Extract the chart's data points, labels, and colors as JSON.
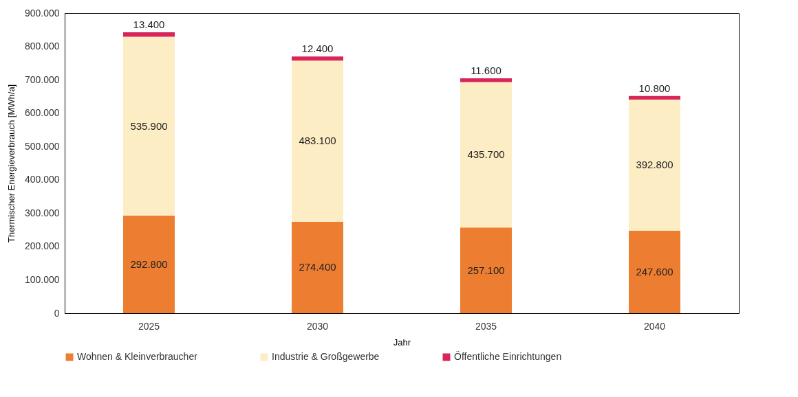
{
  "chart_data": {
    "type": "bar",
    "stacked": true,
    "xlabel": "Jahr",
    "ylabel": "Thermischer Energieverbrauch [MWh/a]",
    "categories": [
      "2025",
      "2030",
      "2035",
      "2040"
    ],
    "series": [
      {
        "name": "Wohnen & Kleinverbraucher",
        "color": "#ed7d31",
        "values": [
          292800,
          274400,
          257100,
          247600
        ],
        "value_labels": [
          "292.800",
          "274.400",
          "257.100",
          "247.600"
        ]
      },
      {
        "name": "Industrie & Großgewerbe",
        "color": "#fdedc5",
        "values": [
          535900,
          483100,
          435700,
          392800
        ],
        "value_labels": [
          "535.900",
          "483.100",
          "435.700",
          "392.800"
        ]
      },
      {
        "name": "Öffentliche Einrichtungen",
        "color": "#d9265a",
        "values": [
          13400,
          12400,
          11600,
          10800
        ],
        "value_labels": [
          "13.400",
          "12.400",
          "11.600",
          "10.800"
        ]
      }
    ],
    "ylim": [
      0,
      900000
    ],
    "yticks": [
      {
        "value": 0,
        "label": "0"
      },
      {
        "value": 100000,
        "label": "100.000"
      },
      {
        "value": 200000,
        "label": "200.000"
      },
      {
        "value": 300000,
        "label": "300.000"
      },
      {
        "value": 400000,
        "label": "400.000"
      },
      {
        "value": 500000,
        "label": "500.000"
      },
      {
        "value": 600000,
        "label": "600.000"
      },
      {
        "value": 700000,
        "label": "700.000"
      },
      {
        "value": 800000,
        "label": "800.000"
      },
      {
        "value": 900000,
        "label": "900.000"
      }
    ],
    "grid": false,
    "legend": "bottom"
  }
}
